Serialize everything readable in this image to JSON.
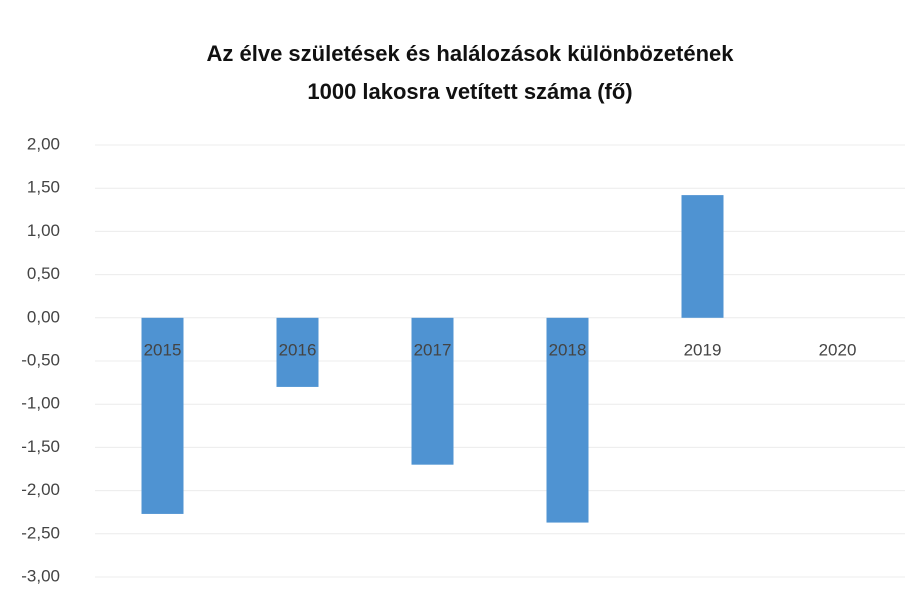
{
  "chart_data": {
    "type": "bar",
    "title": [
      "Az élve születések és halálozások különbözetének",
      "1000 lakosra vetített száma (fő)"
    ],
    "categories": [
      "2015",
      "2016",
      "2017",
      "2018",
      "2019",
      "2020"
    ],
    "values": [
      -2.27,
      -0.8,
      -1.7,
      -2.37,
      1.42,
      null
    ],
    "color": "#4f93d2",
    "ylim": [
      -3,
      2
    ],
    "yticks": [
      {
        "value": 2,
        "label": "2,00"
      },
      {
        "value": 1.5,
        "label": "1,50"
      },
      {
        "value": 1,
        "label": "1,00"
      },
      {
        "value": 0.5,
        "label": "0,50"
      },
      {
        "value": 0,
        "label": "0,00"
      },
      {
        "value": -0.5,
        "label": "-0,50"
      },
      {
        "value": -1,
        "label": "-1,00"
      },
      {
        "value": -1.5,
        "label": "-1,50"
      },
      {
        "value": -2,
        "label": "-2,00"
      },
      {
        "value": -2.5,
        "label": "-2,50"
      },
      {
        "value": -3,
        "label": "-3,00"
      }
    ],
    "grid": true
  }
}
